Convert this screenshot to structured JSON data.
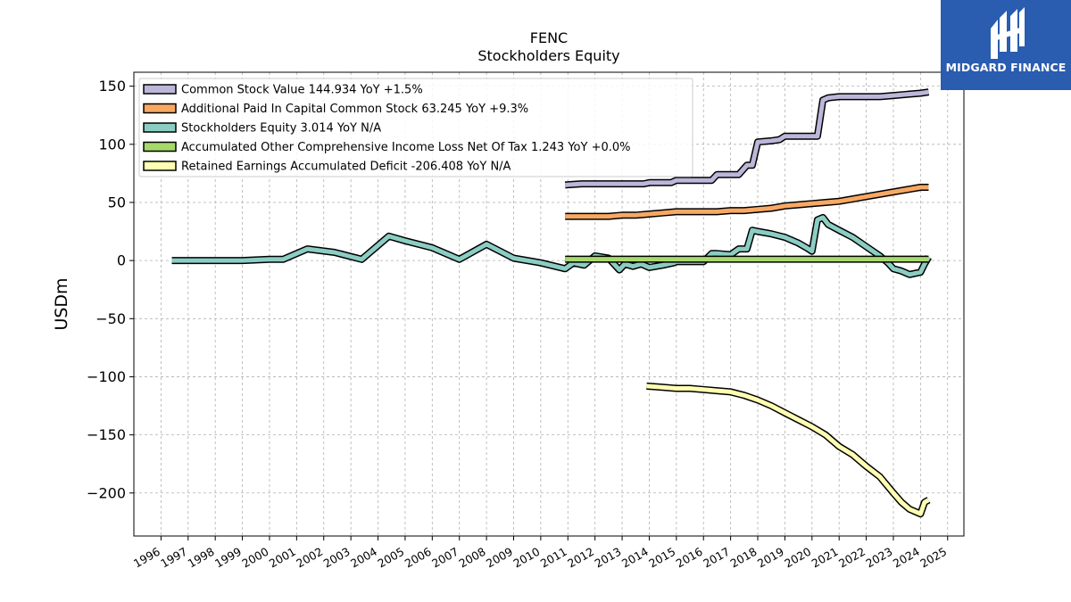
{
  "logo": {
    "text": "MIDGARD FINANCE",
    "background": "#2a5cb0"
  },
  "chart_data": {
    "type": "line",
    "title": "FENC",
    "subtitle": "Stockholders  Equity",
    "ylabel": "USDm",
    "xlabel": "",
    "xlim": [
      1995.0,
      2025.6
    ],
    "ylim": [
      -237,
      162
    ],
    "yticks": [
      150,
      100,
      50,
      0,
      -50,
      -100,
      -150,
      -200
    ],
    "ytick_labels": [
      "150",
      "100",
      "50",
      "0",
      "−50",
      "−100",
      "−150",
      "−200"
    ],
    "xticks": [
      1996,
      1997,
      1998,
      1999,
      2000,
      2001,
      2002,
      2003,
      2004,
      2005,
      2006,
      2007,
      2008,
      2009,
      2010,
      2011,
      2012,
      2013,
      2014,
      2015,
      2016,
      2017,
      2018,
      2019,
      2020,
      2021,
      2022,
      2023,
      2024,
      2025
    ],
    "grid": true,
    "legend_position": "top-left",
    "series": [
      {
        "name": "Common Stock Value  144.934 YoY +1.5%",
        "color": "#bcb6d9",
        "x": [
          2010.9,
          2011.5,
          2012.0,
          2012.5,
          2013.0,
          2013.5,
          2013.8,
          2014.0,
          2014.5,
          2014.8,
          2015.0,
          2015.5,
          2016.0,
          2016.3,
          2016.5,
          2017.0,
          2017.3,
          2017.6,
          2017.8,
          2018.0,
          2018.5,
          2018.8,
          2019.0,
          2019.5,
          2020.0,
          2020.2,
          2020.4,
          2020.6,
          2021.0,
          2021.5,
          2022.0,
          2022.5,
          2023.0,
          2023.5,
          2024.0,
          2024.3
        ],
        "y": [
          65,
          66,
          66,
          66,
          66,
          66,
          66,
          67,
          67,
          67,
          69,
          69,
          69,
          69,
          74,
          74,
          74,
          82,
          82,
          102,
          103,
          104,
          107,
          107,
          107,
          107,
          138,
          140,
          141,
          141,
          141,
          141,
          142,
          143,
          144,
          145
        ]
      },
      {
        "name": "Additional Paid In Capital Common Stock  63.245 YoY +9.3%",
        "color": "#f7a863",
        "x": [
          2010.9,
          2011.5,
          2012.0,
          2012.5,
          2013.0,
          2013.5,
          2014.0,
          2014.5,
          2015.0,
          2015.5,
          2016.0,
          2016.5,
          2017.0,
          2017.5,
          2018.0,
          2018.5,
          2019.0,
          2019.5,
          2020.0,
          2020.5,
          2021.0,
          2021.5,
          2022.0,
          2022.5,
          2023.0,
          2023.5,
          2024.0,
          2024.3
        ],
        "y": [
          38,
          38,
          38,
          38,
          39,
          39,
          40,
          41,
          42,
          42,
          42,
          42,
          43,
          43,
          44,
          45,
          47,
          48,
          49,
          50,
          51,
          53,
          55,
          57,
          59,
          61,
          63,
          63
        ]
      },
      {
        "name": "Stockholders Equity  3.014 YoY N/A",
        "color": "#8bcdc3",
        "x": [
          1996.4,
          1997.0,
          1998.0,
          1999.0,
          2000.0,
          2000.5,
          2001.4,
          2002.4,
          2003.4,
          2004.4,
          2005.0,
          2006.0,
          2007.0,
          2008.0,
          2009.0,
          2010.0,
          2010.9,
          2011.2,
          2011.6,
          2012.0,
          2012.5,
          2012.9,
          2013.1,
          2013.4,
          2013.7,
          2014.0,
          2014.5,
          2014.9,
          2015.0,
          2015.4,
          2016.0,
          2016.3,
          2016.5,
          2017.0,
          2017.3,
          2017.6,
          2017.8,
          2018.0,
          2018.5,
          2019.0,
          2019.5,
          2019.8,
          2020.0,
          2020.2,
          2020.4,
          2020.6,
          2021.0,
          2021.5,
          2022.0,
          2022.5,
          2022.8,
          2023.0,
          2023.3,
          2023.6,
          2024.0,
          2024.15,
          2024.3
        ],
        "y": [
          0,
          0,
          0,
          0,
          1,
          1,
          10,
          7,
          1,
          21,
          17,
          11,
          1,
          14,
          2,
          -2,
          -7,
          -2,
          -4,
          4,
          2,
          -8,
          -3,
          -5,
          -3,
          -6,
          -4,
          -2,
          -1,
          -1,
          -1,
          6,
          6,
          5,
          10,
          10,
          26,
          25,
          23,
          20,
          15,
          11,
          8,
          35,
          37,
          31,
          26,
          20,
          12,
          4,
          -2,
          -7,
          -9,
          -12,
          -10,
          -3,
          3
        ]
      },
      {
        "name": "Accumulated Other Comprehensive Income Loss Net Of Tax  1.243 YoY +0.0%",
        "color": "#a6d96a",
        "x": [
          2010.9,
          2024.3
        ],
        "y": [
          1.2,
          1.2
        ]
      },
      {
        "name": "Retained Earnings Accumulated Deficit  -206.408 YoY N/A",
        "color": "#ffffb3",
        "x": [
          2013.9,
          2014.5,
          2015.0,
          2015.5,
          2016.0,
          2016.5,
          2017.0,
          2017.5,
          2018.0,
          2018.5,
          2019.0,
          2019.5,
          2020.0,
          2020.5,
          2021.0,
          2021.5,
          2022.0,
          2022.5,
          2023.0,
          2023.3,
          2023.6,
          2024.0,
          2024.15,
          2024.3
        ],
        "y": [
          -108,
          -109,
          -110,
          -110,
          -111,
          -112,
          -113,
          -116,
          -120,
          -125,
          -131,
          -137,
          -143,
          -150,
          -160,
          -167,
          -177,
          -186,
          -200,
          -208,
          -214,
          -218,
          -208,
          -206
        ]
      }
    ]
  }
}
